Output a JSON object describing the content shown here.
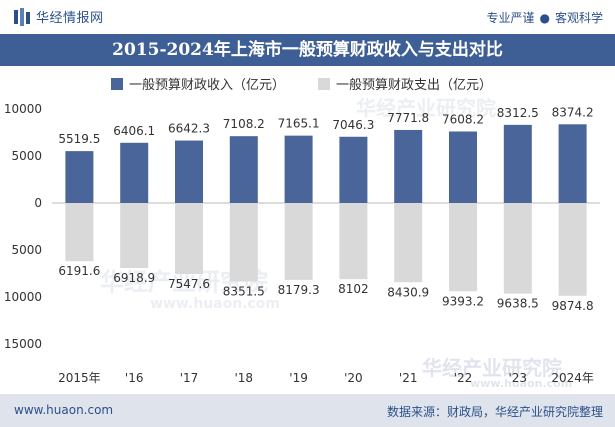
{
  "header": {
    "brand": "华经情报网",
    "slogan_left": "专业严谨",
    "slogan_right": "客观科学",
    "title": "2015-2024年上海市一般预算财政收入与支出对比"
  },
  "footer": {
    "url": "www.huaon.com",
    "source": "数据来源：财政局，华经产业研究院整理"
  },
  "watermark": {
    "text1": "华经产业研究院",
    "text2": "www.huaon.com"
  },
  "colors": {
    "income": "#4a6599",
    "expense": "#d9d9d9",
    "brand": "#2b4f8a",
    "titlebar": "#3e5f96"
  },
  "chart_data": {
    "type": "bar",
    "categories": [
      "2015年",
      "'16",
      "'17",
      "'18",
      "'19",
      "'20",
      "'21",
      "'22",
      "'23",
      "2024年"
    ],
    "series": [
      {
        "name": "一般预算财政收入（亿元）",
        "values": [
          5519.5,
          6406.1,
          6642.3,
          7108.2,
          7165.1,
          7046.3,
          7771.8,
          7608.2,
          8312.5,
          8374.2
        ],
        "labels": [
          "5519.5",
          "6406.1",
          "6642.3",
          "7108.2",
          "7165.1",
          "7046.3",
          "7771.8",
          "7608.2",
          "8312.5",
          "8374.2"
        ]
      },
      {
        "name": "一般预算财政支出（亿元）",
        "values": [
          6191.6,
          6918.9,
          7547.6,
          8351.5,
          8179.3,
          8102,
          8430.9,
          9393.2,
          9638.5,
          9874.8
        ],
        "labels": [
          "6191.6",
          "6918.9",
          "7547.6",
          "8351.5",
          "8179.3",
          "8102",
          "8430.9",
          "9393.2",
          "9638.5",
          "9874.8"
        ]
      }
    ],
    "ylim": [
      -15000,
      10000
    ],
    "yticks": [
      10000,
      5000,
      0,
      -5000,
      -10000,
      -15000
    ],
    "ytick_labels": [
      "10000",
      "5000",
      "0",
      "5000",
      "10000",
      "15000"
    ],
    "legend_position": "top-center",
    "grid": false
  }
}
